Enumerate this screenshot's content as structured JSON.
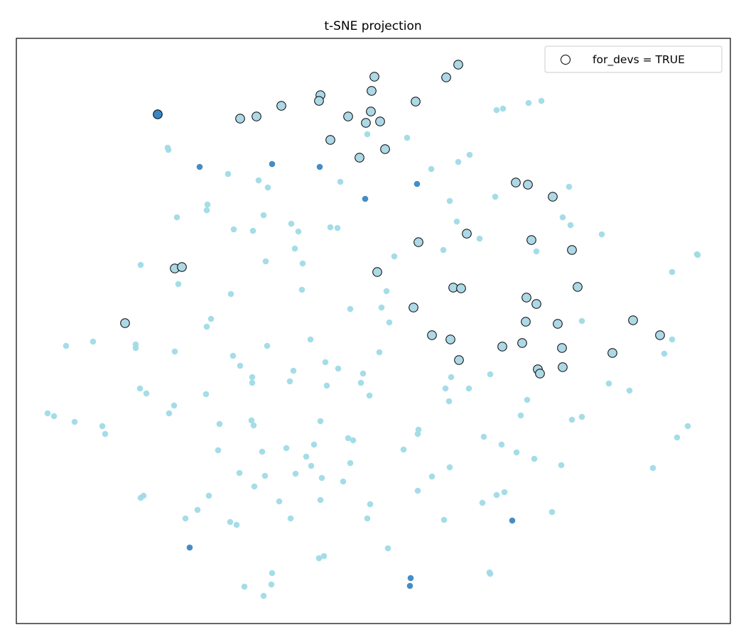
{
  "chart_data": {
    "type": "scatter",
    "title": "t-SNE projection",
    "xlabel": "",
    "ylabel": "",
    "xlim": [
      0,
      100.5
    ],
    "ylim": [
      0,
      82.4
    ],
    "grid": false,
    "ticks": false,
    "legend": {
      "placement": "top-right",
      "entries": [
        "for_devs = TRUE"
      ]
    },
    "series": [
      {
        "color": "#9fdbe6",
        "edge": null,
        "points": [
          [
            21.3,
            67.0
          ],
          [
            21.4,
            66.7
          ],
          [
            29.8,
            63.3
          ],
          [
            34.1,
            62.4
          ],
          [
            35.4,
            61.4
          ],
          [
            26.9,
            59.0
          ],
          [
            26.8,
            58.2
          ],
          [
            22.6,
            57.2
          ],
          [
            30.6,
            55.5
          ],
          [
            33.3,
            55.3
          ],
          [
            34.8,
            57.5
          ],
          [
            38.7,
            56.3
          ],
          [
            39.7,
            55.2
          ],
          [
            44.2,
            55.8
          ],
          [
            45.2,
            55.7
          ],
          [
            45.6,
            62.2
          ],
          [
            49.4,
            68.9
          ],
          [
            55.0,
            68.4
          ],
          [
            58.4,
            64.0
          ],
          [
            62.2,
            65.0
          ],
          [
            63.8,
            66.0
          ],
          [
            67.6,
            72.3
          ],
          [
            68.5,
            72.5
          ],
          [
            72.1,
            73.3
          ],
          [
            73.9,
            73.6
          ],
          [
            61.0,
            59.5
          ],
          [
            67.4,
            60.1
          ],
          [
            62.0,
            56.6
          ],
          [
            65.2,
            54.2
          ],
          [
            77.8,
            61.5
          ],
          [
            76.9,
            57.2
          ],
          [
            78.0,
            56.1
          ],
          [
            82.4,
            54.8
          ],
          [
            73.2,
            52.4
          ],
          [
            60.1,
            52.6
          ],
          [
            53.2,
            51.7
          ],
          [
            39.2,
            52.8
          ],
          [
            40.3,
            50.7
          ],
          [
            35.1,
            51.0
          ],
          [
            17.5,
            50.5
          ],
          [
            22.8,
            47.8
          ],
          [
            30.2,
            46.4
          ],
          [
            40.2,
            47.0
          ],
          [
            52.1,
            46.8
          ],
          [
            51.4,
            44.5
          ],
          [
            47.0,
            44.3
          ],
          [
            52.5,
            42.4
          ],
          [
            27.4,
            42.9
          ],
          [
            26.8,
            41.8
          ],
          [
            95.8,
            52.0
          ],
          [
            95.9,
            51.9
          ],
          [
            92.3,
            49.5
          ],
          [
            79.6,
            42.6
          ],
          [
            92.3,
            40.0
          ],
          [
            91.2,
            38.0
          ],
          [
            7.0,
            39.1
          ],
          [
            10.8,
            39.7
          ],
          [
            16.8,
            39.3
          ],
          [
            16.8,
            38.8
          ],
          [
            22.3,
            38.3
          ],
          [
            35.3,
            39.1
          ],
          [
            41.4,
            40.0
          ],
          [
            51.1,
            38.2
          ],
          [
            30.5,
            37.7
          ],
          [
            31.5,
            36.3
          ],
          [
            33.2,
            34.7
          ],
          [
            33.2,
            33.9
          ],
          [
            39.0,
            35.6
          ],
          [
            38.5,
            34.1
          ],
          [
            43.5,
            36.8
          ],
          [
            45.3,
            35.9
          ],
          [
            48.8,
            35.2
          ],
          [
            48.5,
            33.9
          ],
          [
            43.7,
            33.5
          ],
          [
            49.7,
            32.1
          ],
          [
            61.2,
            34.7
          ],
          [
            60.4,
            33.1
          ],
          [
            63.7,
            33.1
          ],
          [
            66.7,
            35.1
          ],
          [
            60.9,
            31.3
          ],
          [
            71.9,
            31.5
          ],
          [
            71.0,
            29.3
          ],
          [
            83.4,
            33.8
          ],
          [
            86.3,
            32.8
          ],
          [
            17.4,
            33.1
          ],
          [
            18.3,
            32.4
          ],
          [
            22.2,
            30.7
          ],
          [
            21.5,
            29.6
          ],
          [
            26.7,
            32.3
          ],
          [
            4.4,
            29.6
          ],
          [
            5.3,
            29.2
          ],
          [
            8.2,
            28.4
          ],
          [
            12.1,
            27.8
          ],
          [
            12.5,
            26.7
          ],
          [
            28.6,
            28.1
          ],
          [
            33.1,
            28.6
          ],
          [
            33.4,
            27.9
          ],
          [
            42.8,
            28.5
          ],
          [
            56.6,
            27.3
          ],
          [
            56.5,
            26.7
          ],
          [
            78.2,
            28.7
          ],
          [
            79.6,
            29.1
          ],
          [
            94.5,
            27.8
          ],
          [
            93.0,
            26.2
          ],
          [
            46.7,
            26.1
          ],
          [
            47.4,
            25.8
          ],
          [
            54.5,
            24.5
          ],
          [
            65.8,
            26.3
          ],
          [
            68.3,
            25.2
          ],
          [
            70.4,
            24.1
          ],
          [
            72.9,
            23.2
          ],
          [
            76.7,
            22.3
          ],
          [
            89.6,
            21.9
          ],
          [
            28.4,
            24.4
          ],
          [
            34.6,
            24.2
          ],
          [
            38.0,
            24.7
          ],
          [
            41.9,
            25.2
          ],
          [
            40.8,
            23.5
          ],
          [
            47.0,
            22.6
          ],
          [
            41.5,
            22.2
          ],
          [
            31.4,
            21.2
          ],
          [
            35.0,
            20.8
          ],
          [
            39.3,
            21.1
          ],
          [
            33.5,
            19.3
          ],
          [
            43.0,
            20.5
          ],
          [
            46.0,
            20.0
          ],
          [
            58.5,
            20.7
          ],
          [
            61.0,
            22.0
          ],
          [
            56.5,
            18.7
          ],
          [
            17.5,
            17.7
          ],
          [
            17.9,
            18.0
          ],
          [
            27.1,
            18.0
          ],
          [
            37.0,
            17.2
          ],
          [
            42.8,
            17.4
          ],
          [
            49.8,
            16.8
          ],
          [
            65.6,
            17.0
          ],
          [
            67.6,
            18.1
          ],
          [
            68.7,
            18.5
          ],
          [
            25.5,
            16.0
          ],
          [
            23.8,
            14.8
          ],
          [
            30.1,
            14.3
          ],
          [
            31.0,
            13.9
          ],
          [
            38.6,
            14.8
          ],
          [
            49.4,
            14.8
          ],
          [
            60.2,
            14.6
          ],
          [
            75.4,
            15.7
          ],
          [
            52.3,
            10.6
          ],
          [
            42.6,
            9.2
          ],
          [
            43.3,
            9.5
          ],
          [
            36.0,
            7.1
          ],
          [
            66.6,
            7.2
          ],
          [
            66.7,
            7.0
          ],
          [
            32.1,
            5.2
          ],
          [
            35.9,
            5.5
          ],
          [
            34.8,
            3.9
          ]
        ]
      },
      {
        "color": "#3a87c4",
        "edge": null,
        "points": [
          [
            25.8,
            64.3
          ],
          [
            36.0,
            64.7
          ],
          [
            42.7,
            64.3
          ],
          [
            49.1,
            59.8
          ],
          [
            56.4,
            61.9
          ],
          [
            69.8,
            14.5
          ],
          [
            24.4,
            10.7
          ],
          [
            55.5,
            6.4
          ],
          [
            55.4,
            5.3
          ]
        ]
      },
      {
        "name": "for_devs = TRUE",
        "color": "#add8e6",
        "edge": "#000000",
        "points": [
          [
            31.5,
            71.1
          ],
          [
            33.8,
            71.4
          ],
          [
            37.3,
            72.9
          ],
          [
            42.8,
            74.4
          ],
          [
            42.6,
            73.6
          ],
          [
            50.4,
            77.0
          ],
          [
            50.0,
            75.0
          ],
          [
            46.7,
            71.4
          ],
          [
            49.9,
            72.1
          ],
          [
            49.2,
            70.5
          ],
          [
            51.2,
            70.7
          ],
          [
            44.2,
            68.1
          ],
          [
            48.3,
            65.6
          ],
          [
            51.9,
            66.8
          ],
          [
            56.2,
            73.5
          ],
          [
            60.5,
            76.9
          ],
          [
            62.2,
            78.7
          ],
          [
            70.3,
            62.1
          ],
          [
            72.0,
            61.8
          ],
          [
            75.5,
            60.1
          ],
          [
            63.4,
            54.9
          ],
          [
            56.6,
            53.7
          ],
          [
            72.5,
            54.0
          ],
          [
            78.2,
            52.6
          ],
          [
            50.8,
            49.5
          ],
          [
            22.3,
            50.0
          ],
          [
            23.3,
            50.2
          ],
          [
            15.3,
            42.3
          ],
          [
            61.5,
            47.3
          ],
          [
            62.6,
            47.2
          ],
          [
            55.9,
            44.5
          ],
          [
            71.8,
            45.9
          ],
          [
            73.2,
            45.0
          ],
          [
            79.0,
            47.4
          ],
          [
            71.7,
            42.5
          ],
          [
            76.2,
            42.2
          ],
          [
            86.8,
            42.7
          ],
          [
            90.6,
            40.6
          ],
          [
            58.5,
            40.6
          ],
          [
            61.1,
            40.0
          ],
          [
            62.3,
            37.1
          ],
          [
            68.4,
            39.0
          ],
          [
            71.2,
            39.5
          ],
          [
            76.8,
            38.8
          ],
          [
            83.9,
            38.1
          ],
          [
            73.4,
            35.8
          ],
          [
            73.7,
            35.2
          ],
          [
            76.9,
            36.1
          ]
        ]
      },
      {
        "color": "#3a87c4",
        "edge": "#000000",
        "points": [
          [
            19.9,
            71.7
          ]
        ]
      }
    ]
  }
}
